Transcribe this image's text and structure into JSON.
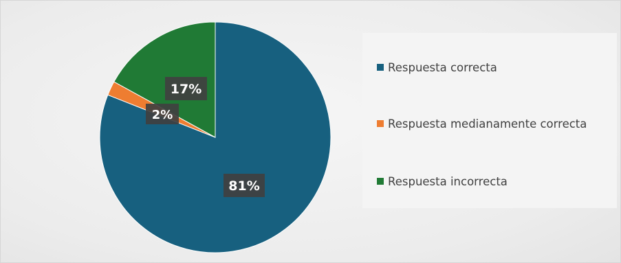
{
  "chart_data": {
    "type": "pie",
    "title": "",
    "start_angle_deg": 0,
    "direction": "clockwise",
    "legend_position": "right",
    "slices": [
      {
        "label": "Respuesta correcta",
        "value": 81,
        "data_label": "81%",
        "color": "#17607f"
      },
      {
        "label": "Respuesta medianamente correcta",
        "value": 2,
        "data_label": "2%",
        "color": "#ee7d31"
      },
      {
        "label": "Respuesta incorrecta",
        "value": 17,
        "data_label": "17%",
        "color": "#207a35"
      }
    ]
  }
}
